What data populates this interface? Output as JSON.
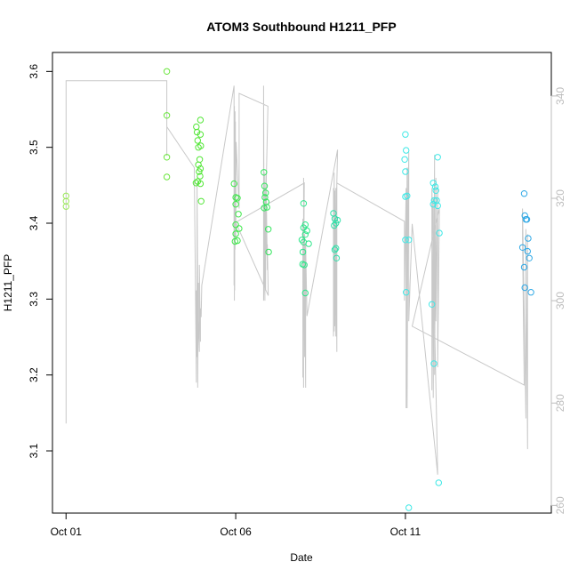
{
  "chart_data": {
    "type": "scatter",
    "title": "ATOM3 Southbound H1211_PFP",
    "xlabel": "Date",
    "ylabel": "H1211_PFP",
    "x_unit": "days",
    "xlim": [
      -0.4,
      14.3
    ],
    "ylim": [
      3.018,
      3.625
    ],
    "y2lim": [
      258.5,
      348.5
    ],
    "x_ticks": [
      {
        "value": 0,
        "label": "Oct 01"
      },
      {
        "value": 5,
        "label": "Oct 06"
      },
      {
        "value": 10,
        "label": "Oct 11"
      }
    ],
    "y_ticks": [
      {
        "value": 3.1,
        "label": "3.1"
      },
      {
        "value": 3.2,
        "label": "3.2"
      },
      {
        "value": 3.3,
        "label": "3.3"
      },
      {
        "value": 3.4,
        "label": "3.4"
      },
      {
        "value": 3.5,
        "label": "3.5"
      },
      {
        "value": 3.6,
        "label": "3.6"
      }
    ],
    "y2_ticks": [
      {
        "value": 260,
        "label": "260"
      },
      {
        "value": 280,
        "label": "280"
      },
      {
        "value": 300,
        "label": "300"
      },
      {
        "value": 320,
        "label": "320"
      },
      {
        "value": 340,
        "label": "340"
      }
    ],
    "grid": false,
    "legend": "none",
    "point_color_by_time": true,
    "series": [
      {
        "axis": "left",
        "marker": "open-circle",
        "points": [
          {
            "x": 0.0,
            "y": 3.436,
            "color": "#9be85a"
          },
          {
            "x": 0.0,
            "y": 3.429,
            "color": "#9be85a"
          },
          {
            "x": 0.0,
            "y": 3.422,
            "color": "#9be85a"
          },
          {
            "x": 2.97,
            "y": 3.6,
            "color": "#6ae63c"
          },
          {
            "x": 2.97,
            "y": 3.542,
            "color": "#6ae63c"
          },
          {
            "x": 2.97,
            "y": 3.487,
            "color": "#6ae63c"
          },
          {
            "x": 2.97,
            "y": 3.461,
            "color": "#6ae63c"
          },
          {
            "x": 3.84,
            "y": 3.527,
            "color": "#52e636"
          },
          {
            "x": 3.86,
            "y": 3.52,
            "color": "#52e636"
          },
          {
            "x": 3.88,
            "y": 3.509,
            "color": "#52e636"
          },
          {
            "x": 3.9,
            "y": 3.5,
            "color": "#52e636"
          },
          {
            "x": 3.9,
            "y": 3.477,
            "color": "#52e636"
          },
          {
            "x": 3.92,
            "y": 3.468,
            "color": "#52e636"
          },
          {
            "x": 3.88,
            "y": 3.455,
            "color": "#52e636"
          },
          {
            "x": 3.96,
            "y": 3.536,
            "color": "#52e636"
          },
          {
            "x": 3.96,
            "y": 3.517,
            "color": "#52e636"
          },
          {
            "x": 3.97,
            "y": 3.502,
            "color": "#52e636"
          },
          {
            "x": 3.94,
            "y": 3.484,
            "color": "#52e636"
          },
          {
            "x": 3.96,
            "y": 3.472,
            "color": "#52e636"
          },
          {
            "x": 3.95,
            "y": 3.462,
            "color": "#52e636"
          },
          {
            "x": 3.96,
            "y": 3.452,
            "color": "#52e636"
          },
          {
            "x": 3.98,
            "y": 3.429,
            "color": "#52e636"
          },
          {
            "x": 3.83,
            "y": 3.453,
            "color": "#52e636"
          },
          {
            "x": 4.95,
            "y": 3.452,
            "color": "#3ee84a"
          },
          {
            "x": 5.0,
            "y": 3.434,
            "color": "#3ee84a"
          },
          {
            "x": 5.05,
            "y": 3.433,
            "color": "#3ee84a"
          },
          {
            "x": 5.0,
            "y": 3.425,
            "color": "#3ee84a"
          },
          {
            "x": 5.08,
            "y": 3.412,
            "color": "#3ee84a"
          },
          {
            "x": 5.0,
            "y": 3.398,
            "color": "#3ee84a"
          },
          {
            "x": 5.1,
            "y": 3.393,
            "color": "#3ee84a"
          },
          {
            "x": 5.0,
            "y": 3.386,
            "color": "#3ee84a"
          },
          {
            "x": 5.05,
            "y": 3.377,
            "color": "#3ee84a"
          },
          {
            "x": 4.98,
            "y": 3.376,
            "color": "#3ee84a"
          },
          {
            "x": 5.83,
            "y": 3.467,
            "color": "#32e65c"
          },
          {
            "x": 5.85,
            "y": 3.449,
            "color": "#32e65c"
          },
          {
            "x": 5.88,
            "y": 3.44,
            "color": "#32e65c"
          },
          {
            "x": 5.86,
            "y": 3.434,
            "color": "#32e65c"
          },
          {
            "x": 5.9,
            "y": 3.428,
            "color": "#32e65c"
          },
          {
            "x": 5.84,
            "y": 3.42,
            "color": "#32e65c"
          },
          {
            "x": 5.92,
            "y": 3.421,
            "color": "#32e65c"
          },
          {
            "x": 5.96,
            "y": 3.392,
            "color": "#32e65c"
          },
          {
            "x": 5.97,
            "y": 3.362,
            "color": "#32e65c"
          },
          {
            "x": 7.0,
            "y": 3.426,
            "color": "#2ee68a"
          },
          {
            "x": 7.05,
            "y": 3.398,
            "color": "#2ee68a"
          },
          {
            "x": 7.0,
            "y": 3.394,
            "color": "#2ee68a"
          },
          {
            "x": 7.1,
            "y": 3.39,
            "color": "#2ee68a"
          },
          {
            "x": 7.05,
            "y": 3.385,
            "color": "#2ee68a"
          },
          {
            "x": 6.95,
            "y": 3.378,
            "color": "#2ee68a"
          },
          {
            "x": 7.0,
            "y": 3.375,
            "color": "#2ee68a"
          },
          {
            "x": 7.15,
            "y": 3.373,
            "color": "#2ee68a"
          },
          {
            "x": 6.98,
            "y": 3.362,
            "color": "#2ee68a"
          },
          {
            "x": 6.97,
            "y": 3.346,
            "color": "#2ee68a"
          },
          {
            "x": 7.02,
            "y": 3.345,
            "color": "#2ee68a"
          },
          {
            "x": 7.05,
            "y": 3.308,
            "color": "#2ee68a"
          },
          {
            "x": 7.88,
            "y": 3.413,
            "color": "#2ee0a8"
          },
          {
            "x": 7.92,
            "y": 3.406,
            "color": "#2ee0a8"
          },
          {
            "x": 8.0,
            "y": 3.404,
            "color": "#2ee0a8"
          },
          {
            "x": 7.95,
            "y": 3.4,
            "color": "#2ee0a8"
          },
          {
            "x": 7.9,
            "y": 3.397,
            "color": "#2ee0a8"
          },
          {
            "x": 7.95,
            "y": 3.367,
            "color": "#2ee0a8"
          },
          {
            "x": 7.92,
            "y": 3.365,
            "color": "#2ee0a8"
          },
          {
            "x": 7.97,
            "y": 3.354,
            "color": "#2ee0a8"
          },
          {
            "x": 10.0,
            "y": 3.517,
            "color": "#3ee8e6"
          },
          {
            "x": 10.02,
            "y": 3.496,
            "color": "#3ee8e6"
          },
          {
            "x": 9.98,
            "y": 3.484,
            "color": "#3ee8e6"
          },
          {
            "x": 10.0,
            "y": 3.468,
            "color": "#3ee8e6"
          },
          {
            "x": 10.05,
            "y": 3.436,
            "color": "#3ee8e6"
          },
          {
            "x": 10.0,
            "y": 3.435,
            "color": "#3ee8e6"
          },
          {
            "x": 10.0,
            "y": 3.378,
            "color": "#3ee8e6"
          },
          {
            "x": 10.1,
            "y": 3.378,
            "color": "#3ee8e6"
          },
          {
            "x": 10.02,
            "y": 3.309,
            "color": "#3ee8e6"
          },
          {
            "x": 10.1,
            "y": 3.025,
            "color": "#3ee8e6"
          },
          {
            "x": 10.82,
            "y": 3.453,
            "color": "#3ee8e6"
          },
          {
            "x": 10.88,
            "y": 3.448,
            "color": "#3ee8e6"
          },
          {
            "x": 10.9,
            "y": 3.443,
            "color": "#3ee8e6"
          },
          {
            "x": 10.85,
            "y": 3.43,
            "color": "#3ee8e6"
          },
          {
            "x": 10.92,
            "y": 3.43,
            "color": "#3ee8e6"
          },
          {
            "x": 10.82,
            "y": 3.425,
            "color": "#3ee8e6"
          },
          {
            "x": 10.95,
            "y": 3.423,
            "color": "#3ee8e6"
          },
          {
            "x": 10.95,
            "y": 3.487,
            "color": "#3ee8e6"
          },
          {
            "x": 11.0,
            "y": 3.387,
            "color": "#3ee8e6"
          },
          {
            "x": 10.78,
            "y": 3.293,
            "color": "#3ee8e6"
          },
          {
            "x": 10.84,
            "y": 3.215,
            "color": "#3ee8e6"
          },
          {
            "x": 10.98,
            "y": 3.058,
            "color": "#3ee8e6"
          },
          {
            "x": 13.5,
            "y": 3.439,
            "color": "#2ea8e6"
          },
          {
            "x": 13.52,
            "y": 3.41,
            "color": "#2ea8e6"
          },
          {
            "x": 13.55,
            "y": 3.405,
            "color": "#2ea8e6"
          },
          {
            "x": 13.58,
            "y": 3.405,
            "color": "#2ea8e6"
          },
          {
            "x": 13.62,
            "y": 3.38,
            "color": "#2ea8e6"
          },
          {
            "x": 13.45,
            "y": 3.368,
            "color": "#2ea8e6"
          },
          {
            "x": 13.6,
            "y": 3.363,
            "color": "#2ea8e6"
          },
          {
            "x": 13.65,
            "y": 3.354,
            "color": "#2ea8e6"
          },
          {
            "x": 13.5,
            "y": 3.342,
            "color": "#2ea8e6"
          },
          {
            "x": 13.52,
            "y": 3.315,
            "color": "#2ea8e6"
          },
          {
            "x": 13.7,
            "y": 3.309,
            "color": "#2ea8e6"
          }
        ]
      },
      {
        "axis": "right",
        "style": "line",
        "color": "#c8c8c8",
        "x": [
          0.0,
          0.0,
          0.0,
          2.97,
          2.97,
          2.97,
          3.78,
          3.84,
          3.84,
          3.86,
          3.86,
          3.88,
          3.88,
          3.9,
          3.9,
          3.93,
          3.93,
          3.96,
          3.96,
          3.98,
          4.0,
          4.95,
          4.95,
          4.96,
          4.96,
          4.97,
          4.97,
          4.98,
          4.98,
          4.99,
          4.99,
          5.0,
          5.0,
          5.01,
          5.1,
          5.1,
          5.95,
          5.82,
          5.82,
          5.84,
          5.84,
          5.86,
          5.86,
          5.88,
          5.88,
          5.9,
          5.9,
          5.93,
          5.93,
          5.96,
          5.0,
          7.02,
          6.98,
          6.98,
          7.0,
          7.0,
          7.03,
          7.03,
          7.06,
          7.06,
          7.1,
          8.0,
          7.88,
          7.88,
          7.9,
          7.9,
          7.92,
          7.92,
          7.95,
          7.95,
          7.98,
          7.98,
          9.97,
          9.97,
          10.02,
          10.02,
          10.05,
          10.05,
          10.08,
          10.08,
          10.1,
          10.1,
          10.2,
          10.95,
          10.78,
          10.78,
          10.82,
          10.82,
          10.86,
          10.86,
          10.9,
          10.9,
          10.95,
          10.95,
          11.0,
          10.2,
          13.5,
          13.45,
          13.45,
          13.55,
          13.55,
          13.6,
          13.6
        ],
        "y": [
          316.3,
          276.0,
          343.0,
          343.0,
          328.3,
          334.0,
          326.0,
          284.0,
          302.0,
          289.0,
          323.0,
          301.5,
          283.0,
          303.5,
          296.0,
          290.0,
          307.0,
          292.0,
          298.5,
          296.8,
          303.0,
          342.0,
          303.0,
          338.0,
          300.0,
          336.0,
          302.0,
          337.0,
          310.0,
          335.0,
          318.0,
          330.0,
          312.0,
          331.0,
          318.0,
          340.5,
          338.0,
          300.0,
          342.0,
          306.0,
          320.0,
          300.0,
          325.0,
          302.0,
          320.0,
          309.0,
          322.0,
          306.0,
          311.0,
          301.0,
          315.3,
          323.0,
          285.0,
          316.0,
          283.0,
          324.0,
          289.0,
          313.0,
          283.0,
          311.0,
          297.0,
          329.5,
          293.0,
          322.0,
          294.0,
          325.0,
          295.0,
          321.5,
          293.0,
          322.0,
          290.0,
          323.0,
          315.5,
          300.0,
          322.0,
          279.0,
          326.0,
          279.0,
          326.0,
          319.0,
          329.0,
          296.0,
          315.0,
          266.0,
          322.0,
          282.5,
          320.0,
          281.0,
          328.5,
          285.5,
          324.0,
          296.0,
          322.0,
          287.0,
          318.0,
          295.0,
          283.5,
          312.0,
          318.0,
          277.0,
          314.0,
          271.0,
          313.0
        ]
      }
    ]
  }
}
